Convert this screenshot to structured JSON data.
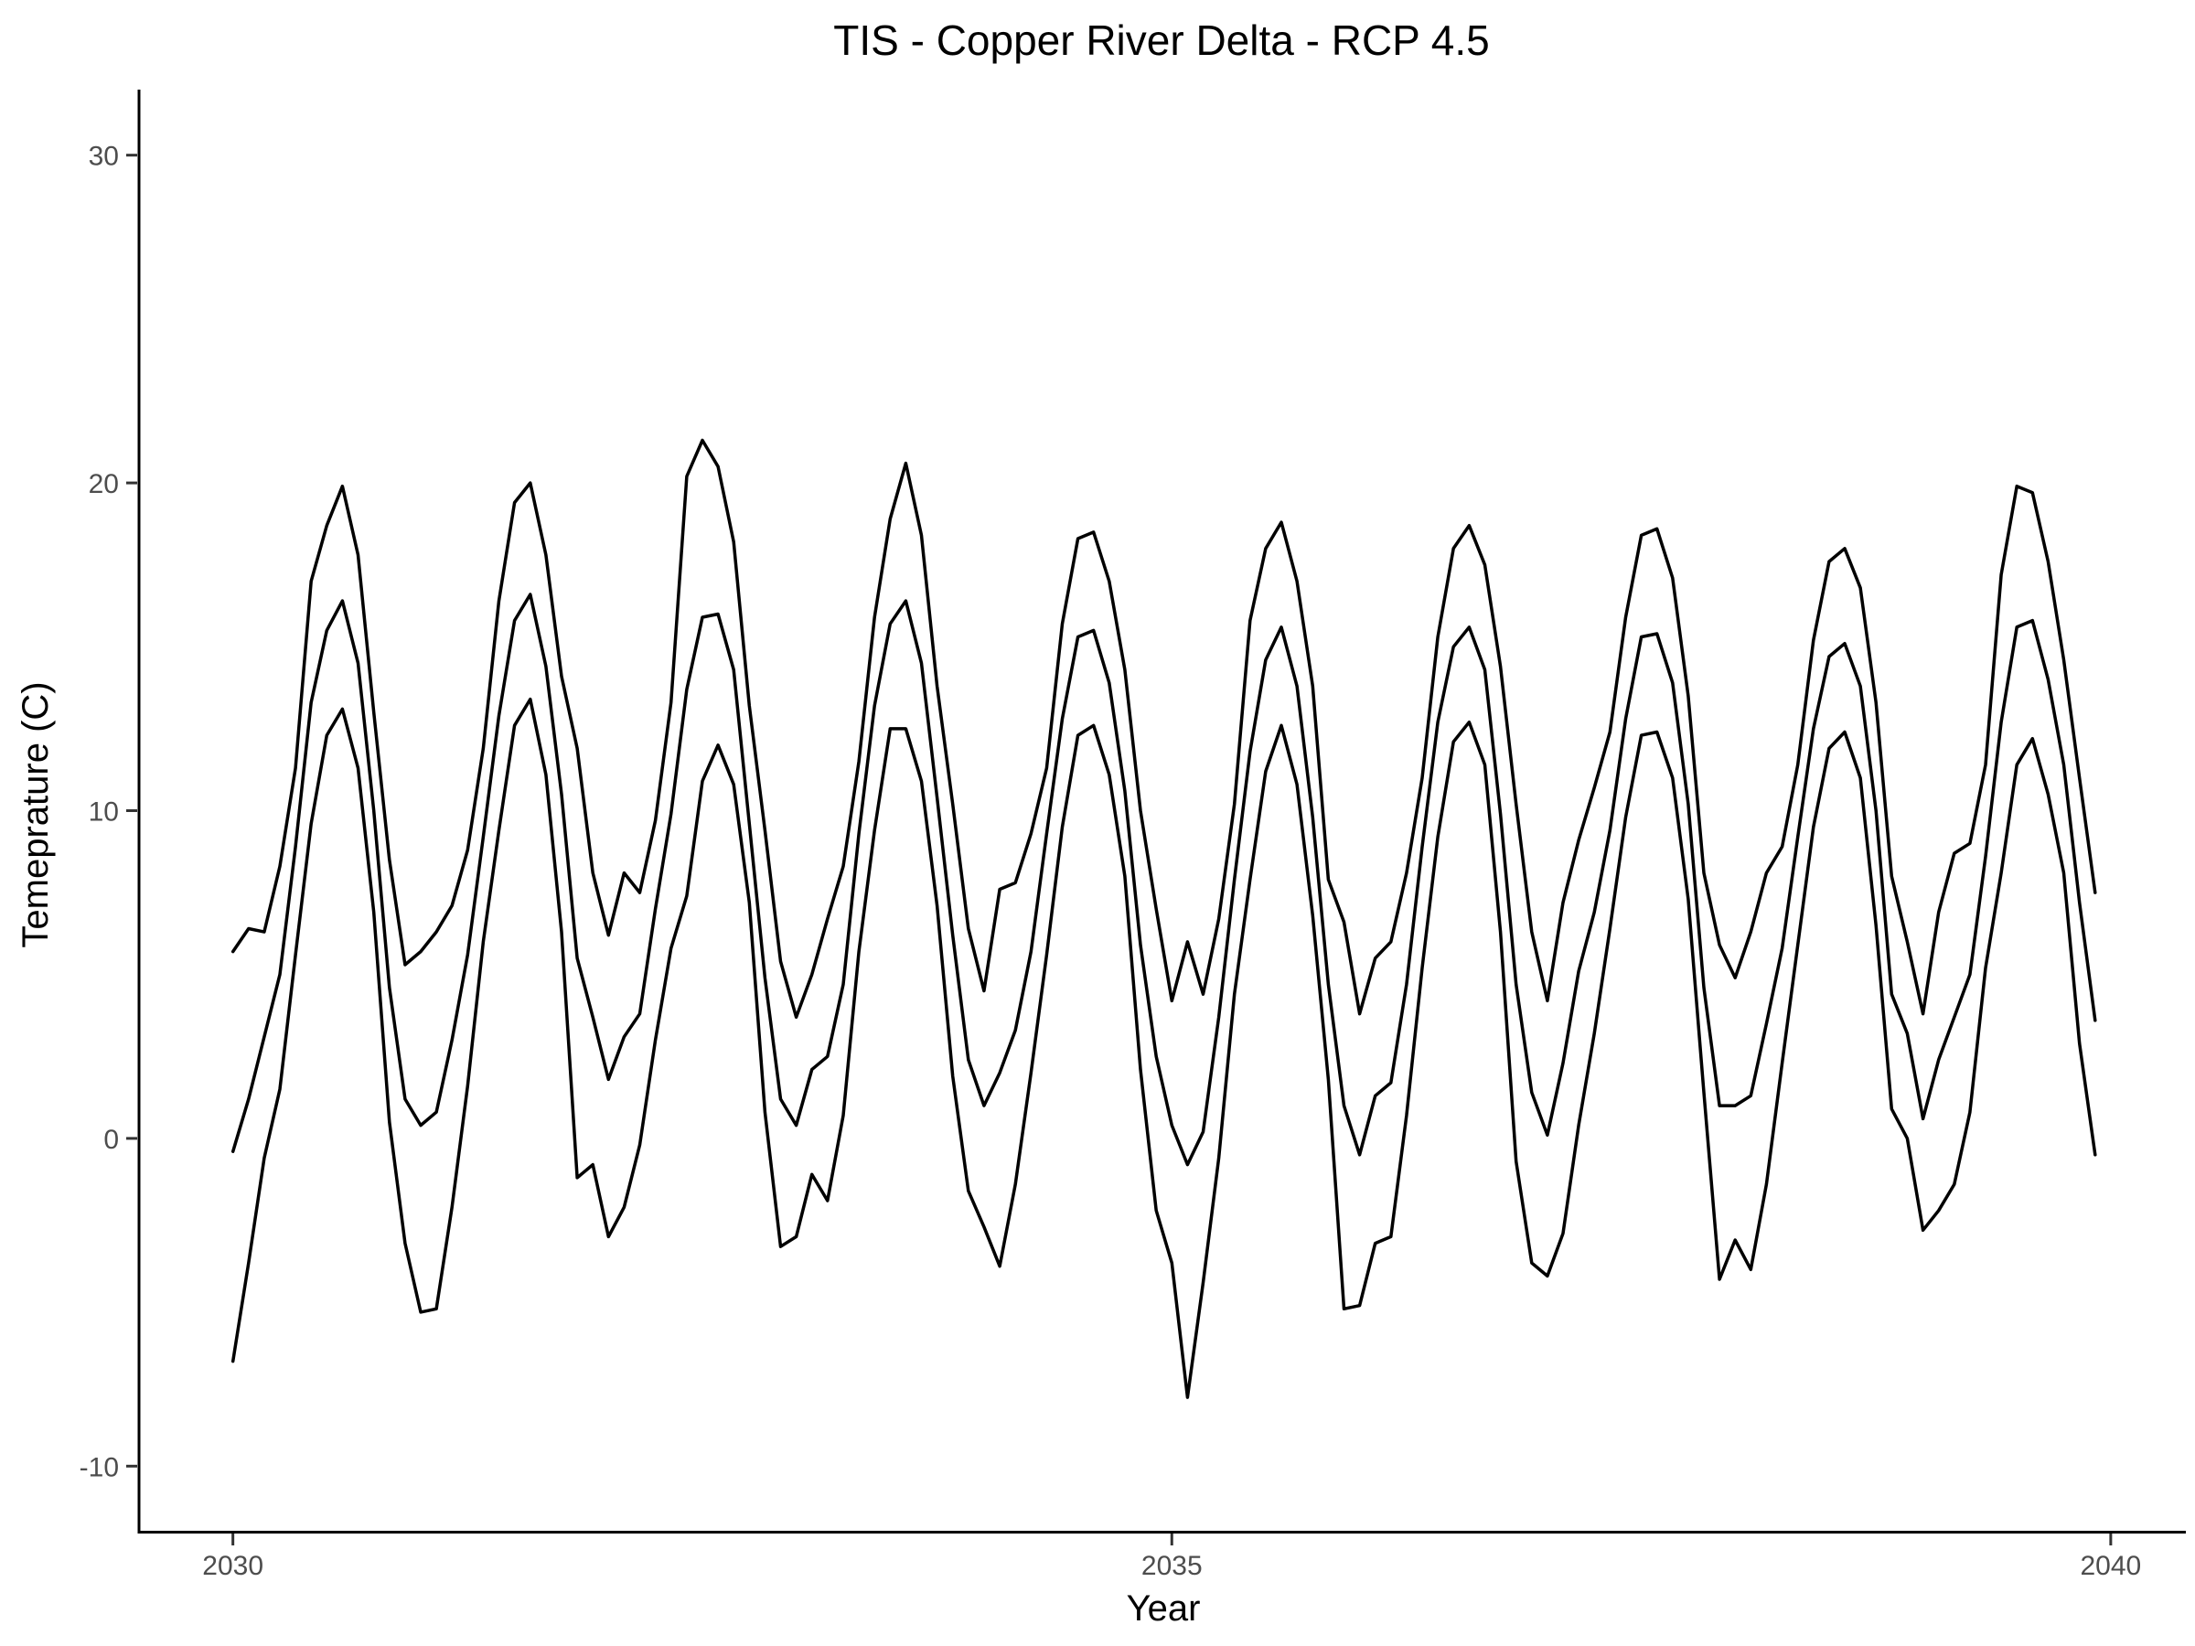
{
  "chart_data": {
    "type": "line",
    "title": "TIS - Copper River Delta - RCP 4.5",
    "xlabel": "Year",
    "ylabel": "Temeprature (C)",
    "xlim": [
      2029.5,
      2040.4
    ],
    "ylim": [
      -12,
      32
    ],
    "xticks": [
      2030,
      2035,
      2040
    ],
    "yticks": [
      -10,
      0,
      10,
      20,
      30
    ],
    "grid": false,
    "legend": "none",
    "line_color": "#000000",
    "series": [
      {
        "values": [
          5.7,
          6.4,
          6.3,
          8.3,
          11.3,
          17.0,
          18.7,
          19.9,
          17.8,
          13.0,
          8.5,
          5.3,
          5.7,
          6.3,
          7.1,
          8.8,
          11.9,
          16.4,
          19.4,
          20.0,
          17.8,
          14.1,
          11.9,
          8.1,
          6.2,
          8.1,
          7.5,
          9.7,
          13.3,
          20.2,
          21.3,
          20.5,
          18.2,
          13.2,
          9.4,
          5.4,
          3.7,
          5.0,
          6.7,
          8.3,
          11.5,
          15.9,
          18.9,
          20.6,
          18.4,
          13.8,
          10.2,
          6.4,
          4.5,
          7.6,
          7.8,
          9.3,
          11.3,
          15.7,
          18.3,
          18.5,
          17.0,
          14.3,
          10.0,
          7.0,
          4.2,
          6.0,
          4.4,
          6.7,
          10.2,
          15.8,
          18.0,
          18.8,
          17.0,
          13.8,
          7.9,
          6.6,
          3.8,
          5.5,
          6.0,
          8.1,
          11.0,
          15.3,
          18.0,
          18.7,
          17.5,
          14.4,
          10.2,
          6.3,
          4.2,
          7.2,
          9.1,
          10.7,
          12.4,
          15.9,
          18.4,
          18.6,
          17.1,
          13.5,
          8.1,
          5.9,
          4.9,
          6.3,
          8.1,
          8.9,
          11.4,
          15.2,
          17.6,
          18.0,
          16.8,
          13.3,
          8.0,
          6.0,
          3.8,
          6.9,
          8.7,
          9.0,
          11.4,
          17.2,
          19.9,
          19.7,
          17.6,
          14.6,
          11.0,
          7.5
        ]
      },
      {
        "values": [
          -0.4,
          1.2,
          3.1,
          5.0,
          8.9,
          13.3,
          15.5,
          16.4,
          14.5,
          10.0,
          4.6,
          1.2,
          0.4,
          0.8,
          3.0,
          5.6,
          9.2,
          12.9,
          15.8,
          16.6,
          14.4,
          10.5,
          5.5,
          3.7,
          1.8,
          3.1,
          3.8,
          7.0,
          9.9,
          13.7,
          15.9,
          16.0,
          14.3,
          9.6,
          4.9,
          1.2,
          0.4,
          2.1,
          2.5,
          4.7,
          9.3,
          13.2,
          15.7,
          16.4,
          14.5,
          10.4,
          6.2,
          2.4,
          1.0,
          2.0,
          3.3,
          5.7,
          9.3,
          12.8,
          15.3,
          15.5,
          13.9,
          10.6,
          5.9,
          2.5,
          0.4,
          -0.8,
          0.2,
          3.7,
          7.9,
          11.8,
          14.6,
          15.6,
          13.8,
          9.8,
          4.7,
          1.0,
          -0.5,
          1.3,
          1.7,
          4.7,
          8.9,
          12.7,
          15.0,
          15.6,
          14.3,
          9.9,
          4.7,
          1.4,
          0.1,
          2.3,
          5.1,
          6.9,
          9.4,
          12.8,
          15.3,
          15.4,
          13.9,
          10.2,
          4.6,
          1.0,
          1.0,
          1.3,
          3.5,
          5.8,
          9.2,
          12.5,
          14.7,
          15.1,
          13.8,
          10.0,
          4.4,
          3.2,
          0.6,
          2.4,
          3.7,
          5.0,
          8.6,
          12.7,
          15.6,
          15.8,
          14.0,
          11.4,
          7.2,
          3.6
        ]
      },
      {
        "values": [
          -6.8,
          -3.8,
          -0.6,
          1.5,
          5.6,
          9.6,
          12.3,
          13.1,
          11.3,
          6.9,
          0.5,
          -3.2,
          -5.3,
          -5.2,
          -2.1,
          1.6,
          6.0,
          9.4,
          12.6,
          13.4,
          11.1,
          6.3,
          -1.2,
          -0.8,
          -3.0,
          -2.1,
          -0.2,
          3.0,
          5.8,
          7.4,
          10.9,
          12.0,
          10.8,
          7.2,
          0.8,
          -3.3,
          -3.0,
          -1.1,
          -1.9,
          0.7,
          5.7,
          9.4,
          12.5,
          12.5,
          10.9,
          7.1,
          1.9,
          -1.6,
          -2.7,
          -3.9,
          -1.4,
          2.0,
          5.6,
          9.5,
          12.3,
          12.6,
          11.1,
          8.0,
          2.1,
          -2.2,
          -3.8,
          -7.9,
          -4.4,
          -0.6,
          4.4,
          7.9,
          11.2,
          12.6,
          10.8,
          6.8,
          1.8,
          -5.2,
          -5.1,
          -3.2,
          -3.0,
          0.7,
          5.2,
          9.2,
          12.1,
          12.7,
          11.4,
          6.3,
          -0.7,
          -3.8,
          -4.2,
          -2.9,
          0.4,
          3.2,
          6.4,
          9.8,
          12.3,
          12.4,
          11.0,
          7.3,
          1.4,
          -4.3,
          -3.1,
          -4.0,
          -1.4,
          2.3,
          5.9,
          9.5,
          11.9,
          12.4,
          11.0,
          6.5,
          0.9,
          0.0,
          -2.8,
          -2.2,
          -1.4,
          0.8,
          5.2,
          8.1,
          11.4,
          12.2,
          10.5,
          8.1,
          2.9,
          -0.5
        ]
      }
    ]
  }
}
